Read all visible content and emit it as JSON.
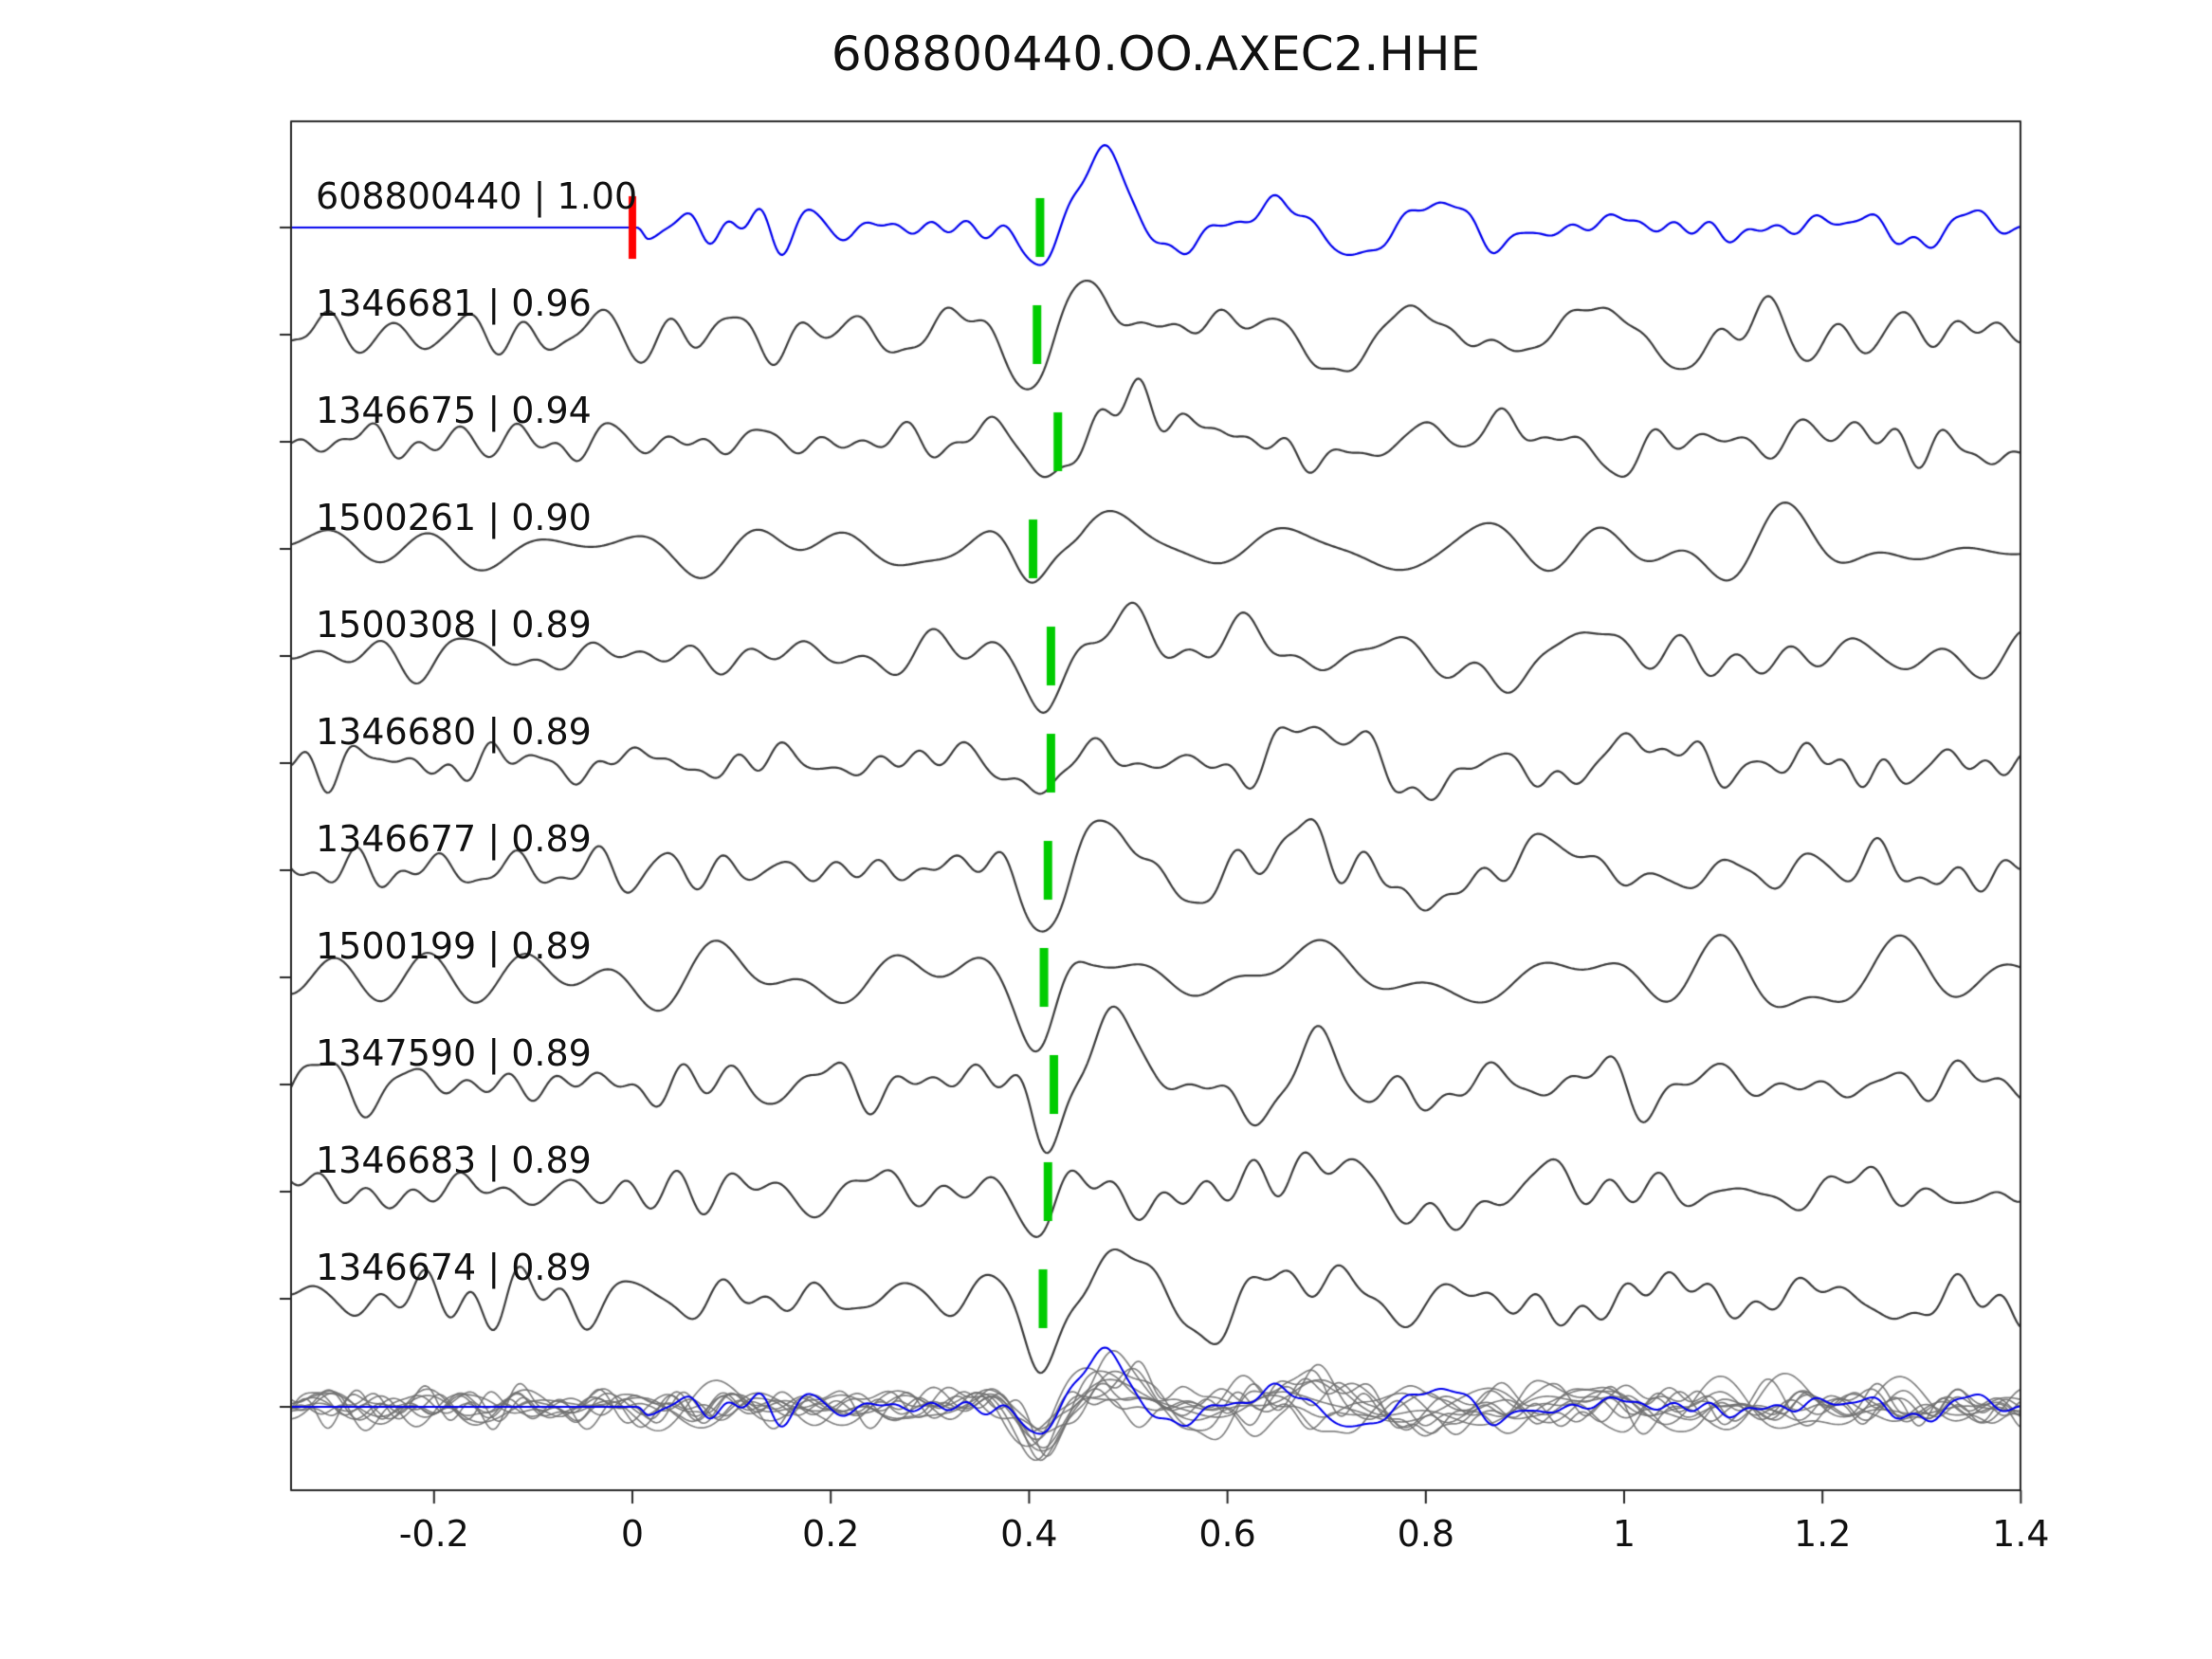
{
  "title": "608800440.OO.AXEC2.HHE",
  "chart_data": {
    "type": "line",
    "title": "608800440.OO.AXEC2.HHE",
    "xlabel": "",
    "ylabel": "",
    "xlim": [
      -0.34,
      1.4
    ],
    "grid": false,
    "legend_position": "none",
    "xtick_labels": [
      "-0.2",
      "0",
      "0.2",
      "0.4",
      "0.6",
      "0.8",
      "1",
      "1.2",
      "1.4"
    ],
    "xtick_values": [
      -0.2,
      0,
      0.2,
      0.4,
      0.6,
      0.8,
      1,
      1.2,
      1.4
    ],
    "colors": {
      "template_trace": "#0000ee",
      "detection_trace": "#3d3d3d",
      "pick_marker": "#00cc00",
      "template_pick_marker": "#ff0000",
      "overlay_traces": "#6e6e6e",
      "axes": "#262626"
    },
    "template_pick_time": 0.0,
    "traces": [
      {
        "id": "608800440",
        "correlation": "1.00",
        "label": "608800440 | 1.00",
        "pick_time": 0.411,
        "is_template": true
      },
      {
        "id": "1346681",
        "correlation": "0.96",
        "label": "1346681 | 0.96",
        "pick_time": 0.408,
        "is_template": false
      },
      {
        "id": "1346675",
        "correlation": "0.94",
        "label": "1346675 | 0.94",
        "pick_time": 0.429,
        "is_template": false
      },
      {
        "id": "1500261",
        "correlation": "0.90",
        "label": "1500261 | 0.90",
        "pick_time": 0.404,
        "is_template": false
      },
      {
        "id": "1500308",
        "correlation": "0.89",
        "label": "1500308 | 0.89",
        "pick_time": 0.422,
        "is_template": false
      },
      {
        "id": "1346680",
        "correlation": "0.89",
        "label": "1346680 | 0.89",
        "pick_time": 0.422,
        "is_template": false
      },
      {
        "id": "1346677",
        "correlation": "0.89",
        "label": "1346677 | 0.89",
        "pick_time": 0.419,
        "is_template": false
      },
      {
        "id": "1500199",
        "correlation": "0.89",
        "label": "1500199 | 0.89",
        "pick_time": 0.415,
        "is_template": false
      },
      {
        "id": "1347590",
        "correlation": "0.89",
        "label": "1347590 | 0.89",
        "pick_time": 0.425,
        "is_template": false
      },
      {
        "id": "1346683",
        "correlation": "0.89",
        "label": "1346683 | 0.89",
        "pick_time": 0.419,
        "is_template": false
      },
      {
        "id": "1346674",
        "correlation": "0.89",
        "label": "1346674 | 0.89",
        "pick_time": 0.414,
        "is_template": false
      }
    ],
    "overlay_row": {
      "description": "all traces overlaid, template in blue over detections in gray"
    }
  }
}
